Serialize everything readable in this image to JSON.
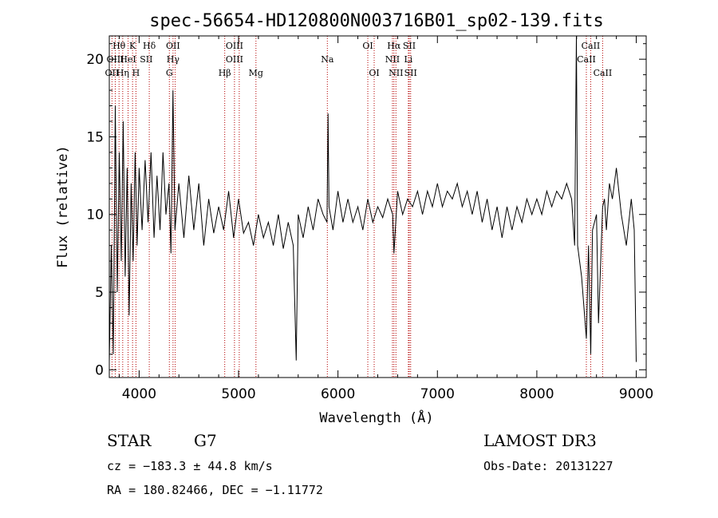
{
  "chart_data": {
    "type": "line",
    "title": "spec-56654-HD120800N003716B01_sp02-139.fits",
    "xlabel": "Wavelength (Å)",
    "ylabel": "Flux (relative)",
    "xlim": [
      3700,
      9100
    ],
    "ylim": [
      -0.5,
      21.5
    ],
    "xticks": [
      4000,
      5000,
      6000,
      7000,
      8000,
      9000
    ],
    "yticks": [
      0,
      5,
      10,
      15,
      20
    ],
    "series": [
      {
        "name": "flux",
        "x": [
          3700,
          3720,
          3740,
          3760,
          3780,
          3800,
          3820,
          3840,
          3860,
          3880,
          3900,
          3920,
          3940,
          3960,
          3980,
          4000,
          4030,
          4060,
          4090,
          4120,
          4150,
          4180,
          4210,
          4240,
          4270,
          4300,
          4320,
          4340,
          4360,
          4400,
          4450,
          4500,
          4550,
          4600,
          4650,
          4700,
          4750,
          4800,
          4850,
          4900,
          4950,
          5000,
          5050,
          5100,
          5150,
          5200,
          5250,
          5300,
          5350,
          5400,
          5450,
          5500,
          5550,
          5580,
          5600,
          5650,
          5700,
          5750,
          5800,
          5850,
          5890,
          5900,
          5910,
          5950,
          6000,
          6050,
          6100,
          6150,
          6200,
          6250,
          6300,
          6350,
          6400,
          6450,
          6500,
          6550,
          6563,
          6600,
          6650,
          6700,
          6750,
          6800,
          6850,
          6900,
          6950,
          7000,
          7050,
          7100,
          7150,
          7200,
          7250,
          7300,
          7350,
          7400,
          7450,
          7500,
          7550,
          7600,
          7650,
          7700,
          7750,
          7800,
          7850,
          7900,
          7950,
          8000,
          8050,
          8100,
          8150,
          8200,
          8250,
          8300,
          8350,
          8380,
          8398,
          8410,
          8450,
          8498,
          8520,
          8542,
          8560,
          8600,
          8620,
          8662,
          8680,
          8700,
          8730,
          8760,
          8800,
          8850,
          8900,
          8950,
          8980,
          9000
        ],
        "values": [
          0.5,
          8.0,
          1.0,
          17.0,
          5.0,
          14.0,
          7.0,
          16.0,
          6.0,
          13.0,
          3.5,
          12.0,
          7.0,
          14.0,
          8.0,
          13.0,
          9.0,
          13.5,
          9.5,
          14.0,
          8.5,
          12.5,
          9.0,
          14.0,
          10.0,
          12.0,
          7.5,
          18.0,
          9.0,
          12.0,
          8.5,
          12.5,
          9.0,
          12.0,
          8.0,
          11.0,
          8.8,
          10.5,
          9.0,
          11.5,
          8.5,
          11.0,
          8.8,
          9.5,
          8.0,
          10.0,
          8.5,
          9.5,
          8.0,
          10.0,
          7.8,
          9.5,
          8.0,
          0.6,
          10.0,
          8.5,
          10.5,
          9.0,
          11.0,
          10.0,
          9.5,
          16.5,
          10.5,
          9.0,
          11.5,
          9.5,
          11.0,
          9.5,
          10.5,
          9.0,
          11.0,
          9.5,
          10.5,
          9.8,
          11.0,
          10.0,
          7.5,
          11.5,
          10.0,
          11.0,
          10.5,
          11.5,
          10.0,
          11.5,
          10.5,
          12.0,
          10.5,
          11.5,
          11.0,
          12.0,
          10.5,
          11.5,
          10.0,
          11.5,
          9.5,
          11.0,
          9.0,
          10.5,
          8.5,
          10.5,
          9.0,
          10.5,
          9.5,
          11.0,
          10.0,
          11.0,
          10.0,
          11.5,
          10.5,
          11.5,
          11.0,
          12.0,
          11.0,
          8.0,
          21.5,
          8.0,
          6.0,
          2.0,
          8.0,
          1.0,
          9.0,
          10.0,
          3.0,
          10.5,
          11.0,
          9.0,
          12.0,
          11.0,
          13.0,
          10.0,
          8.0,
          11.0,
          9.0,
          0.5
        ]
      }
    ],
    "spectral_lines": [
      {
        "label": "Hθ",
        "x": 3798,
        "row": 0
      },
      {
        "label": "K",
        "x": 3934,
        "row": 0
      },
      {
        "label": "Hδ",
        "x": 4102,
        "row": 0
      },
      {
        "label": "OII",
        "x": 4341,
        "row": 0
      },
      {
        "label": "OIII",
        "x": 4959,
        "row": 0
      },
      {
        "label": "OI",
        "x": 6300,
        "row": 0
      },
      {
        "label": "Hα",
        "x": 6563,
        "row": 0
      },
      {
        "label": "SII",
        "x": 6717,
        "row": 0
      },
      {
        "label": "CaII",
        "x": 8542,
        "row": 0
      },
      {
        "label": "OIII",
        "x": 3760,
        "row": 1
      },
      {
        "label": "HeI",
        "x": 3889,
        "row": 1
      },
      {
        "label": "SII",
        "x": 4072,
        "row": 1
      },
      {
        "label": "Hγ",
        "x": 4341,
        "row": 1
      },
      {
        "label": "OIII",
        "x": 4959,
        "row": 1
      },
      {
        "label": "Na",
        "x": 5893,
        "row": 1
      },
      {
        "label": "NII",
        "x": 6548,
        "row": 1
      },
      {
        "label": "Li",
        "x": 6708,
        "row": 1
      },
      {
        "label": "CaII",
        "x": 8498,
        "row": 1
      },
      {
        "label": "OII",
        "x": 3727,
        "row": 2
      },
      {
        "label": "Hη",
        "x": 3835,
        "row": 2
      },
      {
        "label": "H",
        "x": 3968,
        "row": 2
      },
      {
        "label": "G",
        "x": 4304,
        "row": 2
      },
      {
        "label": "Hβ",
        "x": 4861,
        "row": 2
      },
      {
        "label": "Mg",
        "x": 5175,
        "row": 2
      },
      {
        "label": "OI",
        "x": 6364,
        "row": 2
      },
      {
        "label": "NII",
        "x": 6583,
        "row": 2
      },
      {
        "label": "SII",
        "x": 6731,
        "row": 2
      },
      {
        "label": "CaII",
        "x": 8662,
        "row": 2
      }
    ],
    "marker_lines": [
      3727,
      3760,
      3798,
      3835,
      3889,
      3934,
      3968,
      4102,
      4304,
      4341,
      4363,
      4861,
      4959,
      5007,
      5175,
      5893,
      6300,
      6364,
      6548,
      6563,
      6583,
      6708,
      6717,
      6731,
      8498,
      8542,
      8662
    ]
  },
  "info": {
    "object": "STAR",
    "subclass": "G7",
    "survey": "LAMOST DR3",
    "cz": "cz = −183.3 ± 44.8 km/s",
    "obs_date": "Obs-Date: 20131227",
    "coords": "RA = 180.82466, DEC =  −1.11772"
  },
  "colors": {
    "marker_line": "#b40000",
    "spectrum": "#000000",
    "frame": "#000000"
  }
}
